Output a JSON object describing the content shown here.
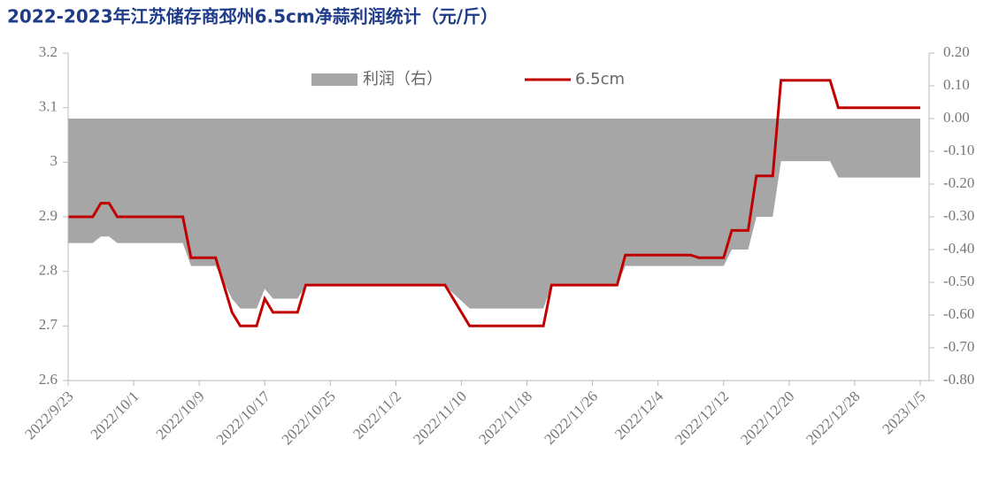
{
  "chart_data": {
    "type": "line",
    "title": "2022-2023年江苏储存商邳州6.5cm净蒜利润统计（元/斤）",
    "x": [
      "2022/9/23",
      "2022/9/26",
      "2022/9/27",
      "2022/9/28",
      "2022/9/29",
      "2022/10/7",
      "2022/10/8",
      "2022/10/11",
      "2022/10/13",
      "2022/10/14",
      "2022/10/16",
      "2022/10/17",
      "2022/10/18",
      "2022/10/21",
      "2022/10/22",
      "2022/11/8",
      "2022/11/11",
      "2022/11/20",
      "2022/11/21",
      "2022/11/29",
      "2022/11/30",
      "2022/12/8",
      "2022/12/9",
      "2022/12/12",
      "2022/12/13",
      "2022/12/15",
      "2022/12/16",
      "2022/12/18",
      "2022/12/19",
      "2022/12/25",
      "2022/12/26",
      "2023/1/5"
    ],
    "series": [
      {
        "name": "利润（右）",
        "type": "area",
        "axis": "y2",
        "color": "#a6a6a6",
        "values": [
          -0.38,
          -0.38,
          -0.36,
          -0.36,
          -0.38,
          -0.38,
          -0.45,
          -0.45,
          -0.55,
          -0.58,
          -0.58,
          -0.52,
          -0.55,
          -0.55,
          -0.51,
          -0.51,
          -0.58,
          -0.58,
          -0.51,
          -0.51,
          -0.45,
          -0.45,
          -0.45,
          -0.45,
          -0.4,
          -0.4,
          -0.3,
          -0.3,
          -0.13,
          -0.13,
          -0.18,
          -0.18
        ]
      },
      {
        "name": "6.5cm",
        "type": "line",
        "color": "#c00000",
        "values": [
          2.9,
          2.9,
          2.925,
          2.925,
          2.9,
          2.9,
          2.825,
          2.825,
          2.725,
          2.7,
          2.7,
          2.75,
          2.725,
          2.725,
          2.775,
          2.775,
          2.7,
          2.7,
          2.775,
          2.775,
          2.83,
          2.83,
          2.825,
          2.825,
          2.875,
          2.875,
          2.975,
          2.975,
          3.15,
          3.15,
          3.1,
          3.1
        ]
      }
    ],
    "xlim": [
      "2022/9/23",
      "2023/1/5"
    ],
    "xticks": [
      "2022/9/23",
      "2022/10/1",
      "2022/10/9",
      "2022/10/17",
      "2022/10/25",
      "2022/11/2",
      "2022/11/10",
      "2022/11/18",
      "2022/11/26",
      "2022/12/4",
      "2022/12/12",
      "2022/12/20",
      "2022/12/28",
      "2023/1/5"
    ],
    "ylim": [
      2.6,
      3.2
    ],
    "yticks": [
      2.6,
      2.7,
      2.8,
      2.9,
      3,
      3.1,
      3.2
    ],
    "y2lim": [
      -0.8,
      0.2
    ],
    "y2ticks": [
      {
        "value": -0.8,
        "label": "-0.80"
      },
      {
        "value": -0.7,
        "label": "-0.70"
      },
      {
        "value": -0.6,
        "label": "-0.60"
      },
      {
        "value": -0.5,
        "label": "-0.50"
      },
      {
        "value": -0.4,
        "label": "-0.40"
      },
      {
        "value": -0.3,
        "label": "-0.30"
      },
      {
        "value": -0.2,
        "label": "-0.20"
      },
      {
        "value": -0.1,
        "label": "-0.10"
      },
      {
        "value": 0,
        "label": "0.00"
      },
      {
        "value": 0.1,
        "label": "0.10"
      },
      {
        "value": 0.2,
        "label": "0.20"
      }
    ],
    "legend": "top"
  }
}
